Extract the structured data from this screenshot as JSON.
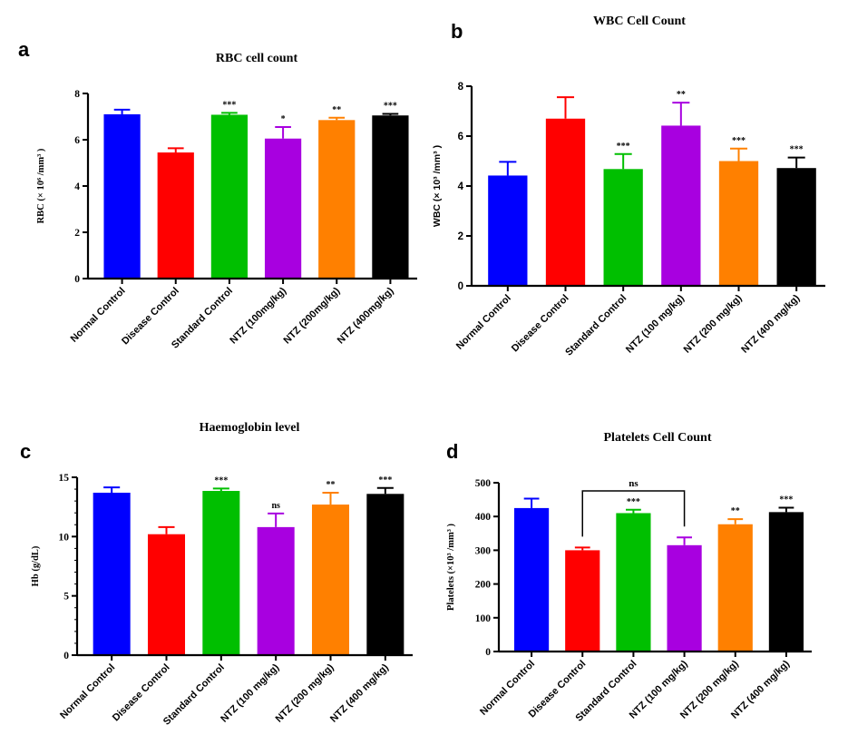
{
  "chart_data": [
    {
      "panel_letter": "a",
      "type": "bar",
      "title": "RBC cell count",
      "ylabel": "RBC (× 10⁶ /mm³ )",
      "ylim": [
        0,
        8
      ],
      "yticks": [
        0,
        2,
        4,
        6,
        8
      ],
      "categories": [
        "Normal Control",
        "Disease Control",
        "Standard Control",
        "NTZ (100mg/kg)",
        "NTZ (200mg/kg)",
        "NTZ (400mg/kg)"
      ],
      "values": [
        7.1,
        5.45,
        7.08,
        6.05,
        6.85,
        7.05
      ],
      "errors": [
        0.2,
        0.18,
        0.08,
        0.5,
        0.1,
        0.07
      ],
      "significance": [
        "",
        "",
        "***",
        "*",
        "**",
        "***"
      ],
      "colors": [
        "#0000ff",
        "#ff0000",
        "#00bf00",
        "#a800e0",
        "#ff8000",
        "#000000"
      ]
    },
    {
      "panel_letter": "b",
      "type": "bar",
      "title": "WBC Cell Count",
      "ylabel": "WBC (× 10³ /mm³ )",
      "ylim": [
        0,
        8
      ],
      "yticks": [
        0,
        2,
        4,
        6,
        8
      ],
      "categories": [
        "Normal Control",
        "Disease Control",
        "Standard Control",
        "NTZ (100 mg/kg)",
        "NTZ (200 mg/kg)",
        "NTZ (400 mg/kg)"
      ],
      "values": [
        4.42,
        6.7,
        4.68,
        6.42,
        5.0,
        4.72
      ],
      "errors": [
        0.55,
        0.86,
        0.6,
        0.92,
        0.5,
        0.42
      ],
      "significance": [
        "",
        "",
        "***",
        "**",
        "***",
        "***"
      ],
      "colors": [
        "#0000ff",
        "#ff0000",
        "#00bf00",
        "#a800e0",
        "#ff8000",
        "#000000"
      ]
    },
    {
      "panel_letter": "c",
      "type": "bar",
      "title": "Haemoglobin level",
      "ylabel": "Hb (g/dL)",
      "ylim": [
        0,
        15
      ],
      "yticks": [
        0,
        5,
        10,
        15
      ],
      "categories": [
        "Normal Control",
        "Disease Control",
        "Standard Control",
        "NTZ (100 mg/kg)",
        "NTZ (200 mg/kg)",
        "NTZ (400 mg/kg)"
      ],
      "values": [
        13.7,
        10.2,
        13.85,
        10.8,
        12.7,
        13.6
      ],
      "errors": [
        0.45,
        0.6,
        0.2,
        1.15,
        1.0,
        0.5
      ],
      "significance": [
        "",
        "",
        "***",
        "ns",
        "**",
        "***"
      ],
      "colors": [
        "#0000ff",
        "#ff0000",
        "#00bf00",
        "#a800e0",
        "#ff8000",
        "#000000"
      ]
    },
    {
      "panel_letter": "d",
      "type": "bar",
      "title": "Platelets Cell Count",
      "ylabel": "Platelets (×10³ /mm³ )",
      "ylim": [
        0,
        500
      ],
      "yticks": [
        0,
        100,
        200,
        300,
        400,
        500
      ],
      "categories": [
        "Normal Control",
        "Disease Control",
        "Standard Control",
        "NTZ (100 mg/kg)",
        "NTZ (200 mg/kg)",
        "NTZ (400 mg/kg)"
      ],
      "values": [
        425,
        300,
        410,
        315,
        377,
        413
      ],
      "errors": [
        28,
        8,
        10,
        23,
        15,
        13
      ],
      "significance": [
        "",
        "",
        "***",
        "",
        "**",
        "***"
      ],
      "bracket": {
        "from": 1,
        "to": 3,
        "label": "ns"
      },
      "colors": [
        "#0000ff",
        "#ff0000",
        "#00bf00",
        "#a800e0",
        "#ff8000",
        "#000000"
      ]
    }
  ]
}
